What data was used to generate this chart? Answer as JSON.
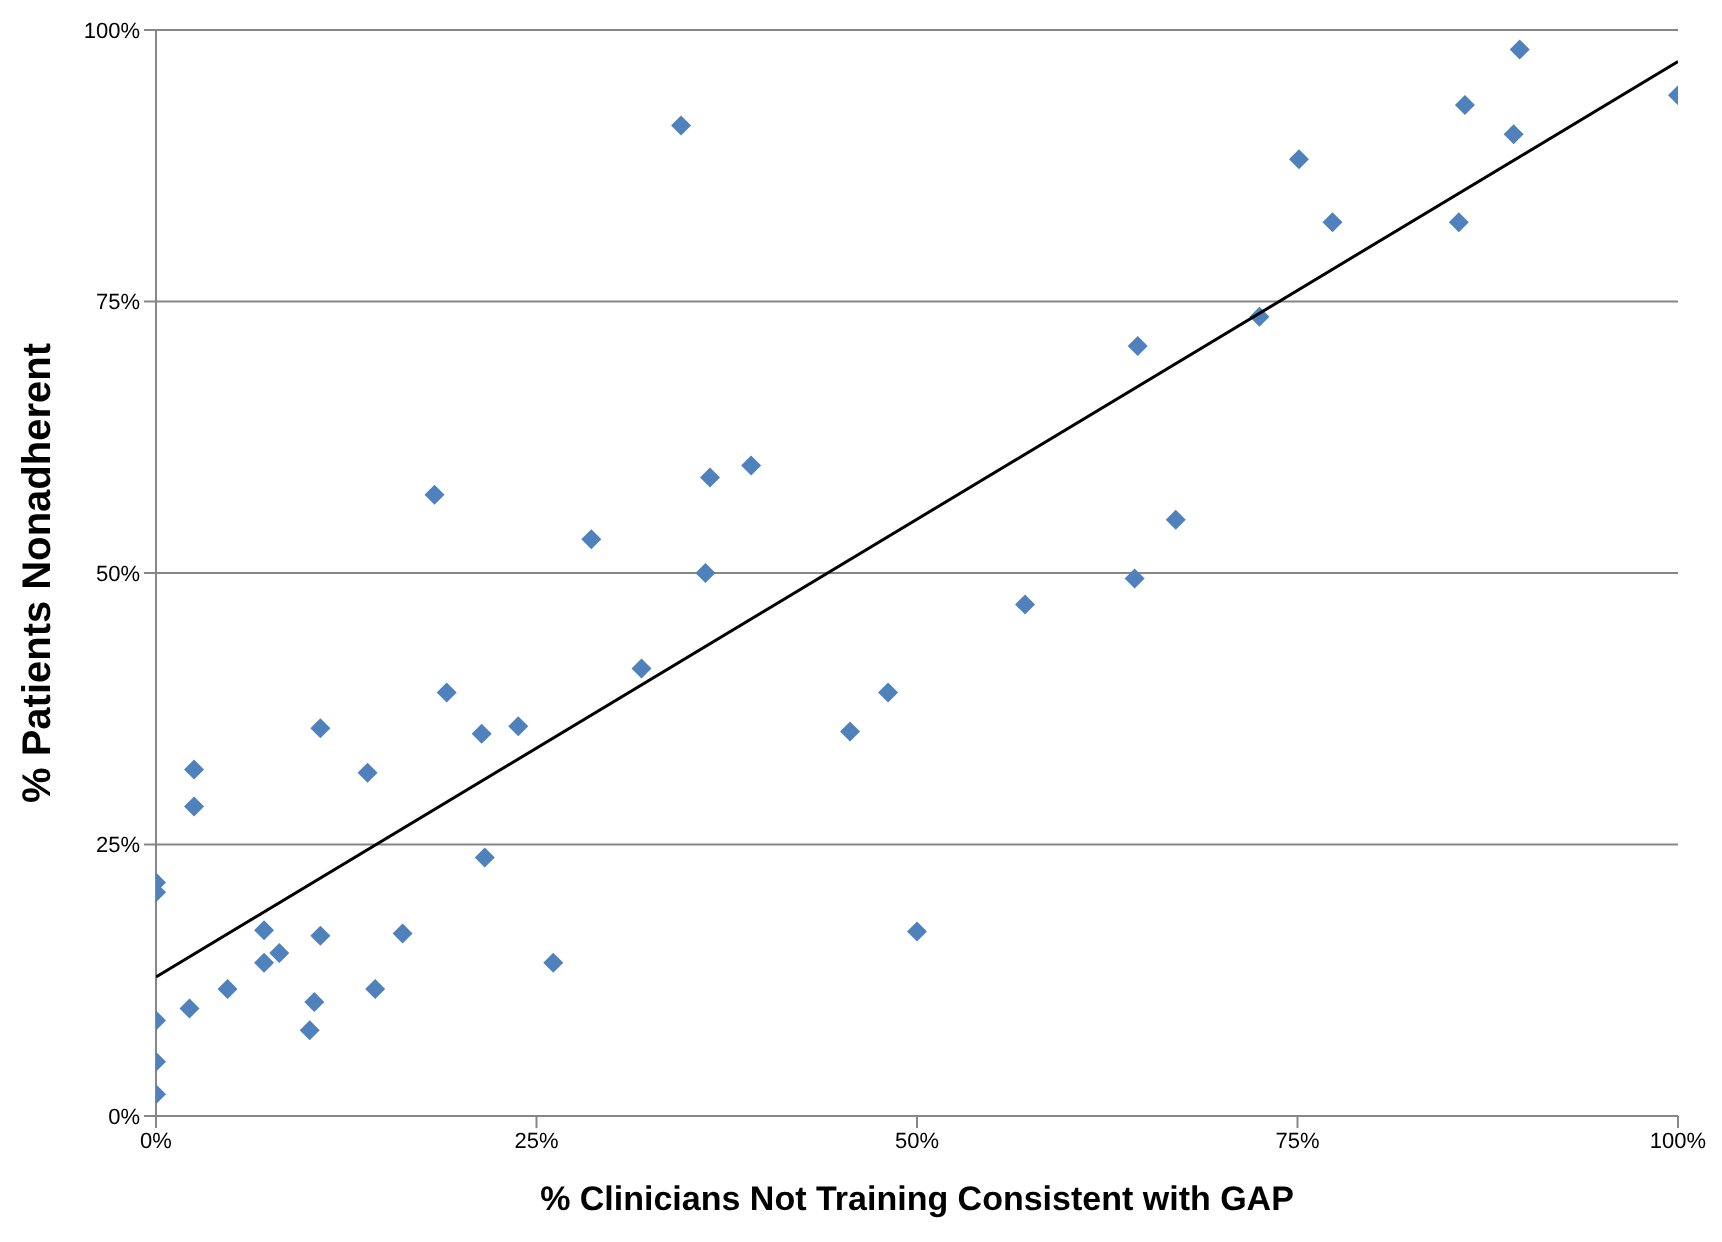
{
  "chart_data": {
    "type": "scatter",
    "xlabel": "% Clinicians Not Training Consistent with GAP",
    "ylabel": "% Patients Nonadherent",
    "xlim": [
      0,
      100
    ],
    "ylim": [
      0,
      100
    ],
    "xticks": [
      {
        "value": 0,
        "label": "0%"
      },
      {
        "value": 25,
        "label": "25%"
      },
      {
        "value": 50,
        "label": "50%"
      },
      {
        "value": 75,
        "label": "75%"
      },
      {
        "value": 100,
        "label": "100%"
      }
    ],
    "yticks": [
      {
        "value": 0,
        "label": "0%"
      },
      {
        "value": 25,
        "label": "25%"
      },
      {
        "value": 50,
        "label": "50%"
      },
      {
        "value": 75,
        "label": "75%"
      },
      {
        "value": 100,
        "label": "100%"
      }
    ],
    "grid": "y",
    "legend": false,
    "series": [
      {
        "color": "#4f81bd",
        "marker": "diamond",
        "x": [
          0,
          0,
          0,
          0,
          0,
          2.2,
          2.5,
          2.5,
          4.7,
          7.1,
          7.1,
          8.1,
          10.1,
          10.4,
          10.8,
          10.8,
          13.9,
          14.4,
          16.2,
          18.3,
          19.1,
          21.4,
          21.6,
          23.8,
          26.1,
          28.6,
          31.9,
          34.5,
          36.1,
          36.4,
          39.1,
          45.6,
          48.1,
          50,
          57.1,
          64.3,
          64.5,
          67,
          72.5,
          75.1,
          77.3,
          85.6,
          86,
          89.2,
          89.6,
          100
        ],
        "values": [
          21.5,
          20.6,
          8.8,
          5,
          2,
          9.9,
          31.9,
          28.5,
          11.7,
          17.1,
          14.1,
          15,
          7.9,
          10.5,
          35.7,
          16.6,
          31.6,
          11.7,
          16.8,
          57.2,
          39,
          35.2,
          23.8,
          35.9,
          14.1,
          53.1,
          41.2,
          91.2,
          50,
          58.8,
          59.9,
          35.4,
          39,
          17,
          47.1,
          49.5,
          70.9,
          54.9,
          73.6,
          88.1,
          82.3,
          82.3,
          93.1,
          90.4,
          98.2,
          94
        ]
      },
      {
        "type": "line",
        "color": "#000000",
        "marker": "none",
        "x": [
          0,
          100
        ],
        "values": [
          12.8,
          97.1
        ]
      }
    ]
  }
}
